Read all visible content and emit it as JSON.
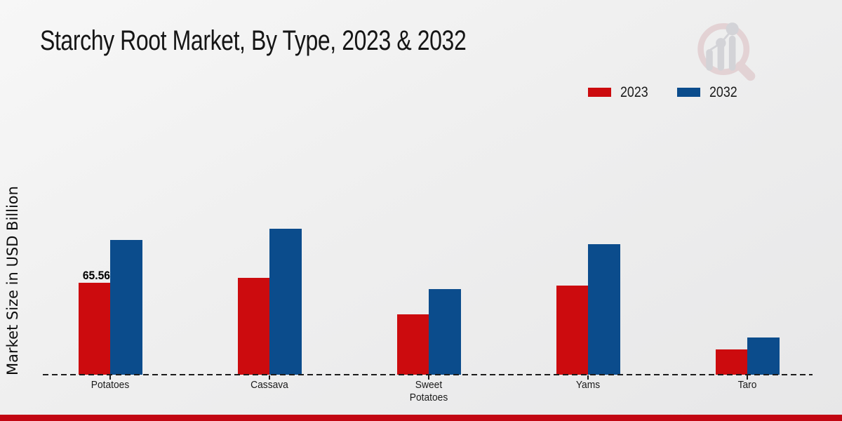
{
  "title": "Starchy Root Market, By Type, 2023 & 2032",
  "legend": {
    "items": [
      {
        "label": "2023",
        "color": "#cc0b0e"
      },
      {
        "label": "2032",
        "color": "#0b4c8c"
      }
    ]
  },
  "chart_data": {
    "type": "bar",
    "title": "Starchy Root Market, By Type, 2023 & 2032",
    "categories": [
      "Potatoes",
      "Cassava",
      "Sweet Potatoes",
      "Yams",
      "Taro"
    ],
    "series": [
      {
        "name": "2023",
        "color": "#cc0b0e",
        "values": [
          65.56,
          69,
          43,
          63.5,
          18
        ]
      },
      {
        "name": "2032",
        "color": "#0b4c8c",
        "values": [
          96,
          104,
          61,
          93,
          26.5
        ]
      }
    ],
    "xlabel": "",
    "ylabel": "Market Size in USD Billion",
    "ylim": [
      0,
      110
    ],
    "grid": false,
    "y_axis_ticks_visible": false,
    "legend_position": "top-right",
    "baseline_style": "dashed",
    "annotations": [
      {
        "category_index": 0,
        "series_index": 0,
        "text": "65.56"
      }
    ]
  },
  "watermark": {
    "icon": "market-research-future-magnifier-logo"
  },
  "footer": {
    "bar_color": "#c20612"
  }
}
